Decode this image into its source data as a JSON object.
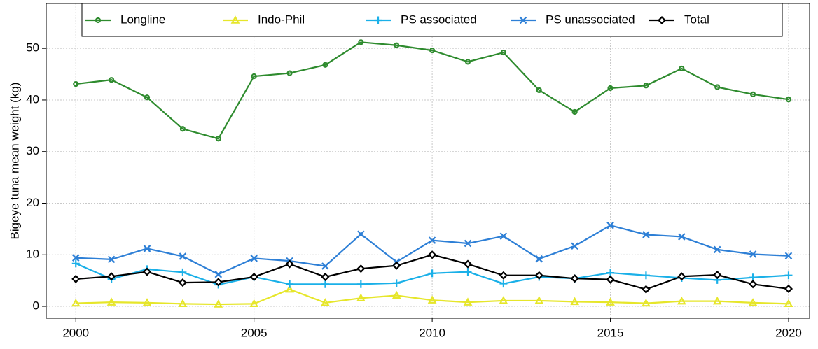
{
  "chart_data": {
    "type": "line",
    "y_label": "Bigeye tuna mean weight (kg)",
    "x": [
      2000,
      2001,
      2002,
      2003,
      2004,
      2005,
      2006,
      2007,
      2008,
      2009,
      2010,
      2011,
      2012,
      2013,
      2014,
      2015,
      2016,
      2017,
      2018,
      2019,
      2020
    ],
    "series": [
      {
        "name": "Longline",
        "color": "#2e8b2e",
        "marker": "circle",
        "values": [
          43.1,
          43.9,
          40.5,
          34.4,
          32.5,
          44.6,
          45.2,
          46.8,
          51.2,
          50.6,
          49.6,
          47.4,
          49.2,
          41.9,
          37.7,
          42.3,
          42.8,
          46.1,
          42.5,
          41.1,
          40.1
        ]
      },
      {
        "name": "Indo-Phil",
        "color": "#e6e62a",
        "marker": "triangle",
        "values": [
          0.6,
          0.8,
          0.7,
          0.5,
          0.4,
          0.5,
          3.3,
          0.7,
          1.6,
          2.1,
          1.2,
          0.8,
          1.1,
          1.1,
          0.9,
          0.8,
          0.6,
          1.0,
          1.0,
          0.7,
          0.5
        ]
      },
      {
        "name": "PS associated",
        "color": "#1ab0e8",
        "marker": "plus",
        "values": [
          8.3,
          5.3,
          7.2,
          6.6,
          4.2,
          5.7,
          4.3,
          4.3,
          4.3,
          4.5,
          6.4,
          6.7,
          4.4,
          5.7,
          5.4,
          6.5,
          6.0,
          5.5,
          5.1,
          5.6,
          6.0
        ]
      },
      {
        "name": "PS unassociated",
        "color": "#2d7fd6",
        "marker": "cross",
        "values": [
          9.4,
          9.1,
          11.2,
          9.7,
          6.2,
          9.3,
          8.8,
          7.8,
          14.0,
          8.6,
          12.8,
          12.2,
          13.6,
          9.2,
          11.7,
          15.7,
          13.9,
          13.5,
          11.0,
          10.1,
          9.8
        ]
      },
      {
        "name": "Total",
        "color": "#000000",
        "marker": "diamond",
        "values": [
          5.3,
          5.8,
          6.7,
          4.6,
          4.7,
          5.7,
          8.2,
          5.7,
          7.3,
          7.9,
          10.0,
          8.2,
          6.0,
          6.0,
          5.4,
          5.2,
          3.3,
          5.8,
          6.1,
          4.3,
          3.4
        ]
      }
    ],
    "xlim": [
      1999.17,
      2020.59
    ],
    "xticks": [
      2000,
      2005,
      2010,
      2015,
      2020
    ],
    "ylim": [
      -2.3,
      58.7
    ],
    "yticks": [
      0,
      10,
      20,
      30,
      40,
      50
    ],
    "grid": true,
    "legend": "top"
  }
}
